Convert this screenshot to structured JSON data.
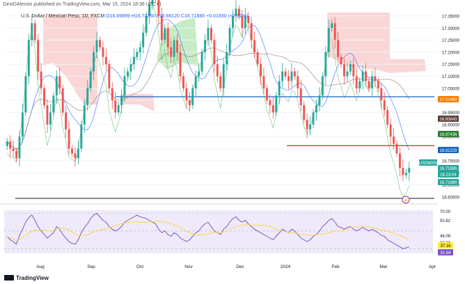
{
  "header": {
    "publisher_line": "GinoDAlessio published on TradingView.com, Mar 15, 2024 18:36 UTC+1",
    "symbol_line": "U.S. Dollar / Mexican Peso, 1D, FXCM",
    "ohlc_line": "O16.69899 H16.73750 L16.66120 C16.71880 +0.01930 (+0.12%)"
  },
  "footer": {
    "brand": "TradingView"
  },
  "price_axis": {
    "ticks": [
      "17.35000",
      "17.30000",
      "17.25000",
      "17.20000",
      "17.15000",
      "17.10000",
      "17.05000",
      "16.95000",
      "16.90000",
      "16.85000",
      "16.75000",
      "16.70000",
      "16.65000",
      "16.60000"
    ],
    "markers": [
      {
        "label": "17.01493",
        "bg": "#f57c00",
        "fg": "#ffffff"
      },
      {
        "label": "16.93643",
        "bg": "#5d4037",
        "fg": "#ffffff"
      },
      {
        "label": "16.87436",
        "bg": "#2e7d32",
        "fg": "#ffffff"
      },
      {
        "label": "16.81229",
        "bg": "#1565c0",
        "fg": "#ffffff"
      },
      {
        "label": "USDMXN",
        "bg": "#26a69a",
        "fg": "#ffffff"
      },
      {
        "label": "16.71880",
        "bg": "#26a69a",
        "fg": "#ffffff"
      },
      {
        "label": "05:23:04",
        "bg": "#26a69a",
        "fg": "#ffffff"
      },
      {
        "label": "16.71880",
        "bg": "#26a69a",
        "fg": "#ffffff"
      }
    ]
  },
  "rsi_axis": {
    "ticks": [
      "70.00",
      "50.82",
      "46.09",
      "30.00"
    ],
    "markers": [
      {
        "label": "37.16",
        "bg": "#ffeb3b",
        "fg": "#000000"
      },
      {
        "label": "31.64",
        "bg": "#7e57c2",
        "fg": "#ffffff"
      }
    ]
  },
  "time_axis": {
    "labels": [
      "Aug",
      "Sep",
      "Oct",
      "Nov",
      "Dec",
      "2024",
      "Feb",
      "Mar",
      "Apr"
    ]
  },
  "colors": {
    "up": "#26a69a",
    "down": "#ef5350",
    "ichimoku_cloud_bear": "#f8c4c4",
    "ichimoku_cloud_bull": "#b9e6b6",
    "support_blue": "#1565c0",
    "resistance_red": "#c62828",
    "rsi_line": "#7e57c2",
    "rsi_ma": "#ffd54f"
  },
  "chart_data": {
    "type": "candlestick",
    "symbol": "USDMXN",
    "horizontal_lines": [
      17.01493,
      16.81229,
      16.62
    ],
    "closes": [
      16.83,
      16.8,
      16.79,
      16.76,
      16.85,
      16.95,
      17.1,
      17.25,
      17.32,
      17.25,
      17.12,
      17.05,
      16.98,
      16.9,
      16.95,
      17.02,
      17.1,
      17.05,
      16.95,
      16.88,
      16.8,
      16.78,
      16.76,
      16.8,
      16.9,
      16.98,
      17.05,
      17.12,
      17.2,
      17.25,
      17.22,
      17.18,
      17.15,
      17.05,
      17.0,
      16.95,
      16.98,
      17.02,
      17.1,
      17.12,
      17.15,
      17.18,
      17.2,
      17.22,
      17.28,
      17.35,
      17.4,
      17.45,
      17.42,
      17.35,
      17.25,
      17.3,
      17.22,
      17.18,
      17.25,
      17.2,
      17.1,
      17.05,
      17.0,
      16.98,
      17.05,
      17.1,
      17.12,
      17.2,
      17.25,
      17.3,
      17.25,
      17.15,
      17.1,
      17.05,
      17.15,
      17.2,
      17.3,
      17.35,
      17.38,
      17.35,
      17.3,
      17.35,
      17.32,
      17.25,
      17.2,
      17.15,
      17.1,
      17.05,
      17.0,
      16.98,
      16.95,
      17.02,
      17.08,
      17.12,
      17.1,
      17.08,
      17.12,
      17.1,
      17.05,
      16.98,
      16.92,
      16.88,
      16.9,
      16.95,
      16.98,
      17.02,
      17.1,
      17.2,
      17.3,
      17.32,
      17.25,
      17.18,
      17.15,
      17.1,
      17.12,
      17.15,
      17.1,
      17.05,
      17.08,
      17.12,
      17.08,
      17.05,
      17.1,
      17.08,
      17.05,
      17.0,
      16.96,
      16.9,
      16.85,
      16.82,
      16.78,
      16.72,
      16.69,
      16.7,
      16.72
    ],
    "rsi": [
      44,
      40,
      38,
      35,
      45,
      52,
      60,
      65,
      68,
      62,
      55,
      50,
      46,
      42,
      45,
      48,
      55,
      52,
      46,
      42,
      38,
      36,
      35,
      40,
      48,
      54,
      58,
      64,
      68,
      70,
      66,
      62,
      60,
      55,
      52,
      50,
      52,
      55,
      60,
      62,
      64,
      66,
      68,
      66,
      65,
      64,
      62,
      60,
      58,
      52,
      48,
      50,
      46,
      44,
      48,
      46,
      42,
      40,
      38,
      40,
      44,
      48,
      50,
      55,
      58,
      60,
      55,
      50,
      48,
      46,
      52,
      55,
      60,
      64,
      66,
      62,
      60,
      62,
      58,
      55,
      52,
      50,
      48,
      46,
      44,
      42,
      40,
      44,
      48,
      52,
      50,
      48,
      52,
      50,
      46,
      42,
      40,
      38,
      40,
      44,
      46,
      50,
      55,
      58,
      62,
      64,
      60,
      55,
      54,
      52,
      54,
      55,
      52,
      50,
      52,
      54,
      52,
      50,
      52,
      50,
      48,
      45,
      44,
      40,
      38,
      36,
      34,
      32,
      30,
      31,
      32
    ]
  }
}
